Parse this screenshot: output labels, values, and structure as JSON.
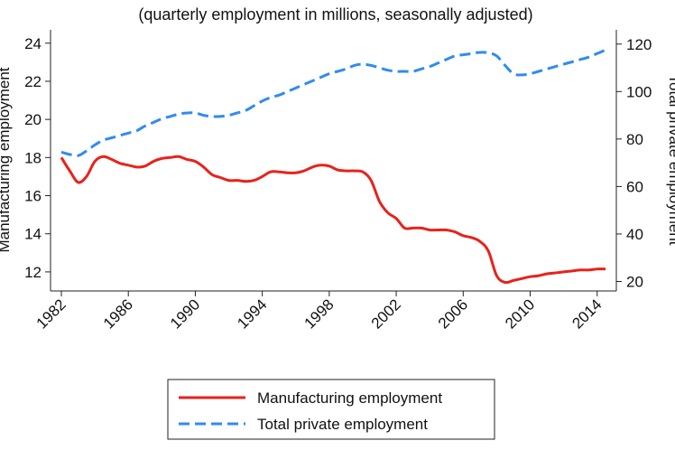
{
  "chart_data": {
    "type": "line",
    "subtitle": "(quarterly employment in millions, seasonally adjusted)",
    "ylabel_left": "Manufacturing employment",
    "ylabel_right": "Total private employment",
    "xlim": [
      1982,
      2014.5
    ],
    "ylim_left": [
      11,
      24.7
    ],
    "ylim_right": [
      16,
      126
    ],
    "x_ticks": [
      1982,
      1986,
      1990,
      1994,
      1998,
      2002,
      2006,
      2010,
      2014
    ],
    "y_ticks_left": [
      12,
      14,
      16,
      18,
      20,
      22,
      24
    ],
    "y_ticks_right": [
      20,
      40,
      60,
      80,
      100,
      120
    ],
    "grid": false,
    "legend_position": "bottom",
    "series": [
      {
        "name": "Manufacturing employment",
        "axis": "left",
        "color": "#e8221b",
        "style": "solid",
        "x": [
          1982,
          1982.5,
          1983,
          1983.5,
          1984,
          1984.5,
          1985,
          1985.5,
          1986,
          1986.5,
          1987,
          1987.5,
          1988,
          1988.5,
          1989,
          1989.5,
          1990,
          1990.5,
          1991,
          1991.5,
          1992,
          1992.5,
          1993,
          1993.5,
          1994,
          1994.5,
          1995,
          1995.5,
          1996,
          1996.5,
          1997,
          1997.5,
          1998,
          1998.5,
          1999,
          1999.5,
          2000,
          2000.5,
          2001,
          2001.5,
          2002,
          2002.5,
          2003,
          2003.5,
          2004,
          2004.5,
          2005,
          2005.5,
          2006,
          2006.5,
          2007,
          2007.5,
          2008,
          2008.5,
          2009,
          2009.5,
          2010,
          2010.5,
          2011,
          2011.5,
          2012,
          2012.5,
          2013,
          2013.5,
          2014,
          2014.5
        ],
        "values": [
          18.0,
          17.3,
          16.7,
          17.0,
          17.8,
          18.05,
          17.9,
          17.7,
          17.6,
          17.5,
          17.55,
          17.8,
          17.95,
          18.0,
          18.05,
          17.9,
          17.8,
          17.5,
          17.1,
          16.95,
          16.8,
          16.8,
          16.75,
          16.8,
          17.0,
          17.25,
          17.25,
          17.2,
          17.2,
          17.3,
          17.5,
          17.6,
          17.55,
          17.35,
          17.3,
          17.3,
          17.25,
          16.8,
          15.7,
          15.1,
          14.8,
          14.3,
          14.3,
          14.3,
          14.2,
          14.2,
          14.2,
          14.1,
          13.9,
          13.8,
          13.6,
          13.1,
          11.8,
          11.45,
          11.55,
          11.65,
          11.75,
          11.8,
          11.9,
          11.95,
          12.0,
          12.05,
          12.1,
          12.1,
          12.15,
          12.15
        ]
      },
      {
        "name": "Total private employment",
        "axis": "right",
        "color": "#2f8cf0",
        "style": "dashed",
        "x": [
          1982,
          1982.5,
          1983,
          1983.5,
          1984,
          1984.5,
          1985,
          1985.5,
          1986,
          1986.5,
          1987,
          1987.5,
          1988,
          1988.5,
          1989,
          1989.5,
          1990,
          1990.5,
          1991,
          1991.5,
          1992,
          1992.5,
          1993,
          1993.5,
          1994,
          1994.5,
          1995,
          1995.5,
          1996,
          1996.5,
          1997,
          1997.5,
          1998,
          1998.5,
          1999,
          1999.5,
          2000,
          2000.5,
          2001,
          2001.5,
          2002,
          2002.5,
          2003,
          2003.5,
          2004,
          2004.5,
          2005,
          2005.5,
          2006,
          2006.5,
          2007,
          2007.5,
          2008,
          2008.5,
          2009,
          2009.5,
          2010,
          2010.5,
          2011,
          2011.5,
          2012,
          2012.5,
          2013,
          2013.5,
          2014,
          2014.5
        ],
        "values": [
          74.5,
          73.5,
          73.0,
          75.0,
          77.5,
          79.5,
          80.5,
          81.5,
          82.5,
          83.5,
          85.5,
          87.0,
          88.5,
          89.5,
          90.5,
          91.0,
          91.0,
          90.0,
          89.5,
          89.5,
          90.0,
          91.0,
          92.0,
          94.0,
          96.0,
          97.5,
          98.5,
          100.0,
          101.5,
          103.0,
          104.5,
          106.0,
          107.5,
          108.5,
          109.5,
          111.0,
          111.5,
          111.0,
          110.0,
          109.0,
          108.5,
          108.5,
          108.5,
          109.5,
          110.5,
          112.0,
          113.5,
          115.0,
          115.5,
          116.0,
          116.5,
          116.3,
          115.0,
          111.0,
          107.5,
          107.0,
          107.5,
          108.5,
          109.5,
          110.5,
          111.5,
          112.5,
          113.5,
          114.5,
          116.0,
          117.5
        ]
      }
    ]
  }
}
